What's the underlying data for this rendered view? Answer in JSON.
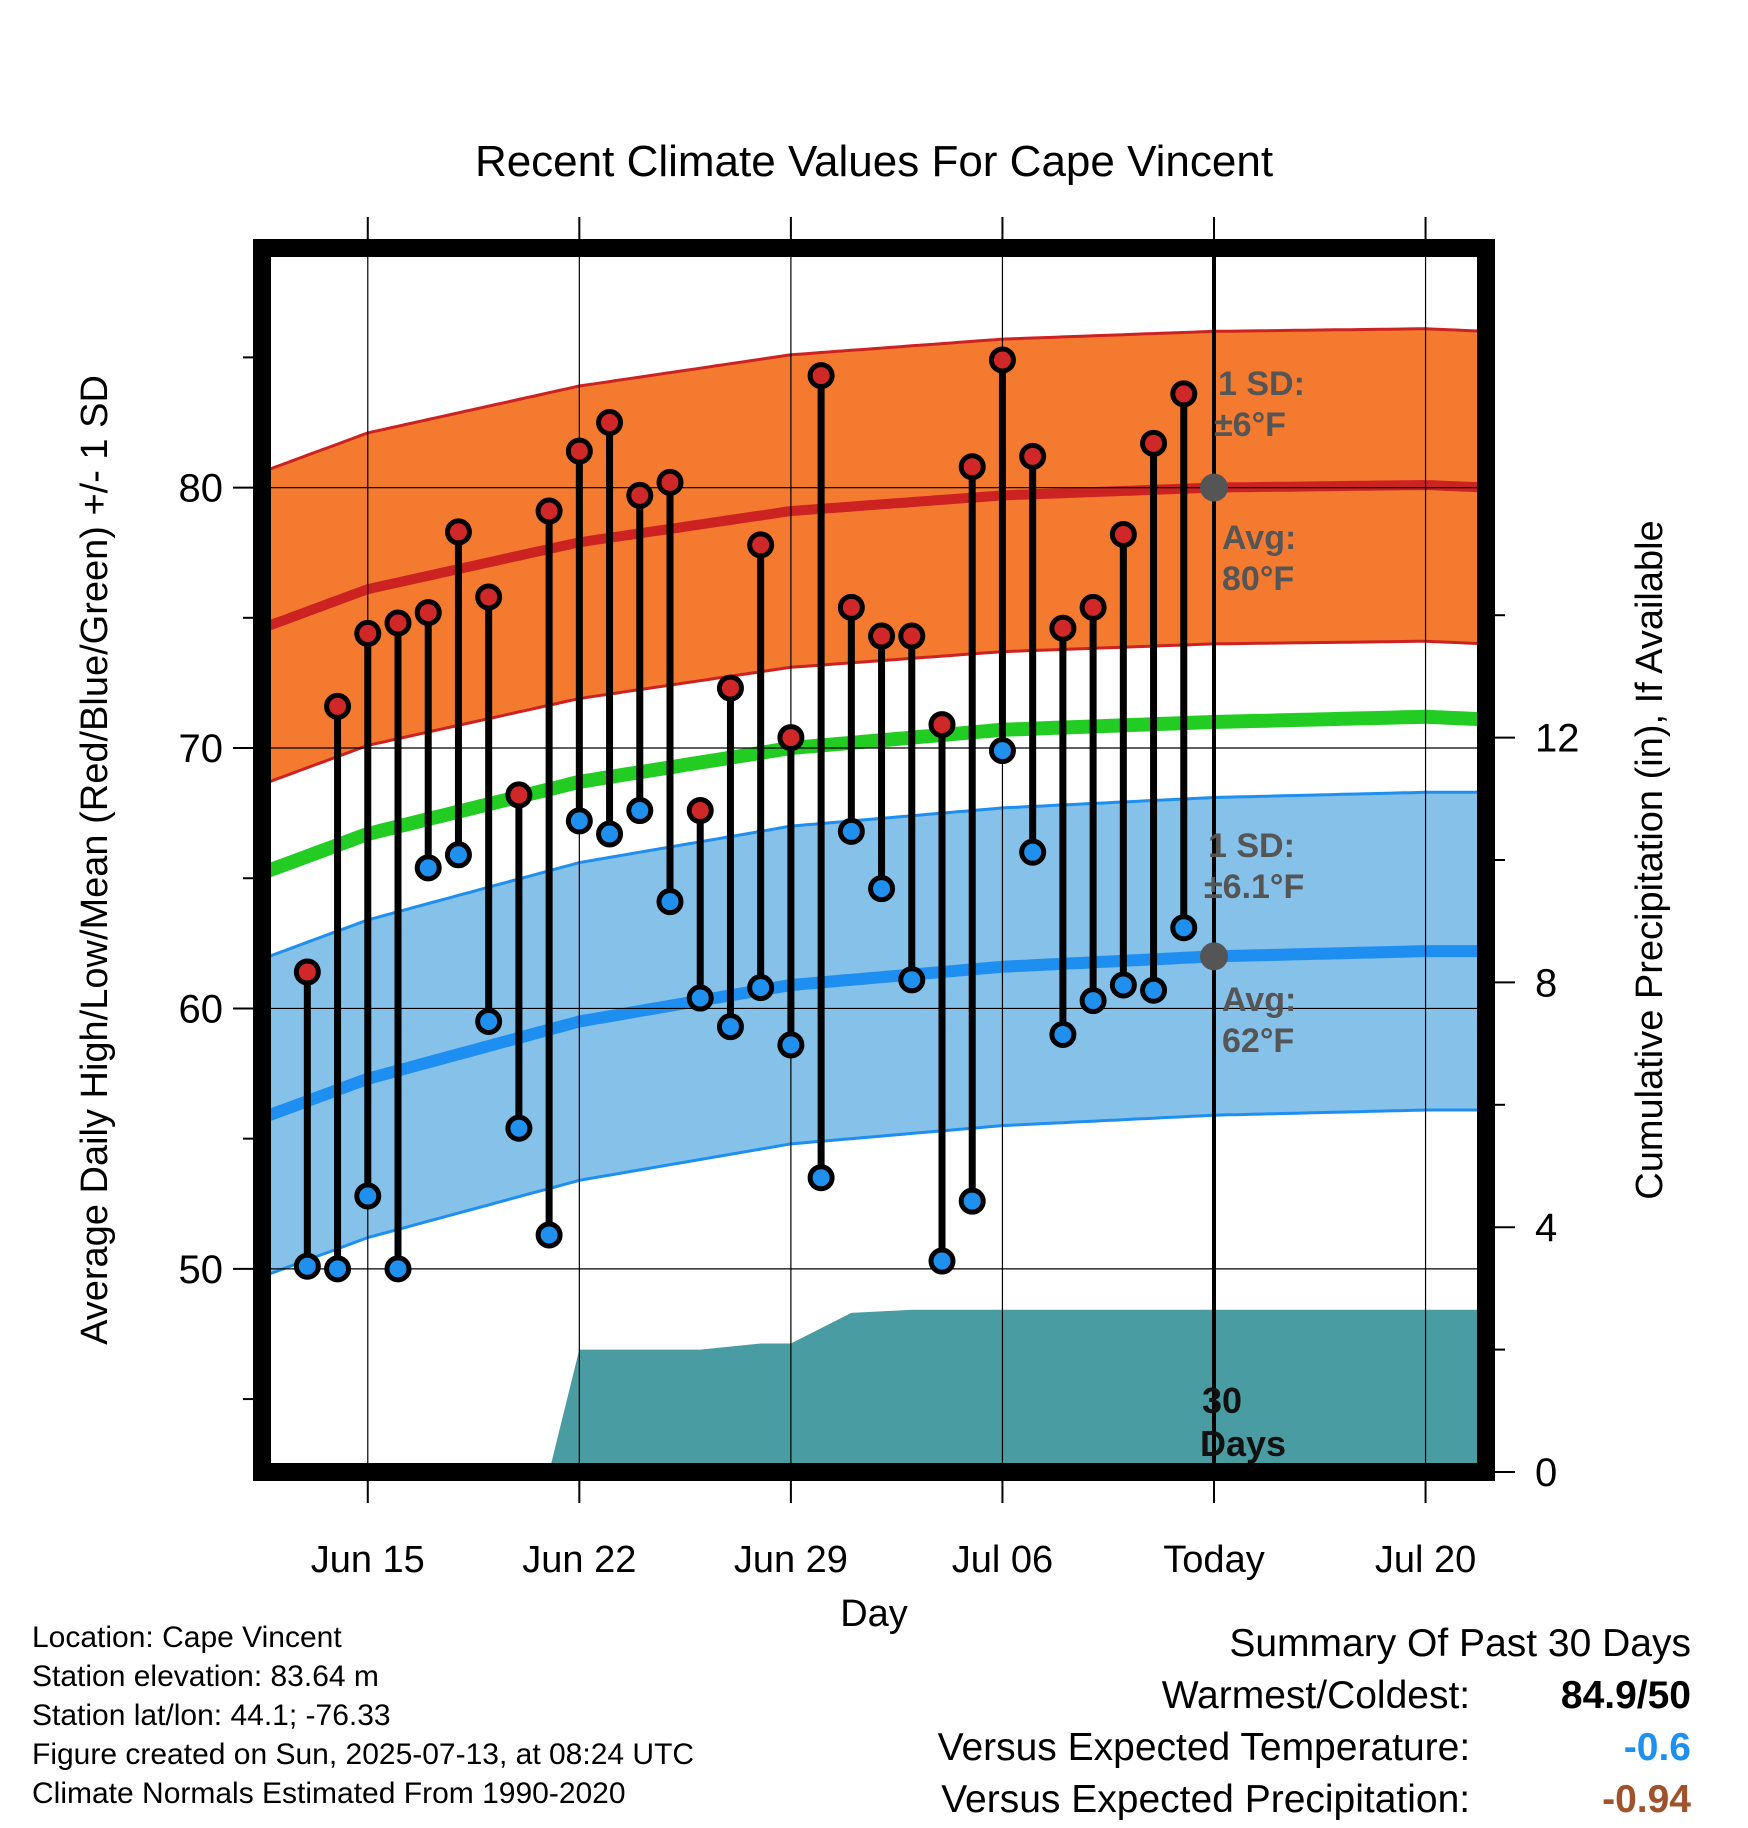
{
  "chart_data": {
    "type": "line",
    "title": "Recent Climate Values For Cape Vincent",
    "xlabel": "Day",
    "ylabel": "Average Daily High/Low/Mean (Red/Blue/Green) +/- 1 SD",
    "y2label": "Cumulative Precipitation (in), If Available",
    "ylim": [
      42.2,
      89.2
    ],
    "y2lim": [
      0,
      20
    ],
    "yticks": [
      50,
      60,
      70,
      80
    ],
    "y2ticks": [
      0,
      4,
      8,
      12
    ],
    "xticks": [
      {
        "day": 15,
        "label": "Jun 15"
      },
      {
        "day": 22,
        "label": "Jun 22"
      },
      {
        "day": 29,
        "label": "Jun 29"
      },
      {
        "day": 36,
        "label": "Jul 06"
      },
      {
        "day": 43,
        "label": "Today"
      },
      {
        "day": 50,
        "label": "Jul 20"
      }
    ],
    "xlim": [
      11.5,
      52
    ],
    "today_day": 43,
    "grid": true,
    "daily_observations": [
      {
        "day": 13,
        "high": 61.4,
        "low": 50.1
      },
      {
        "day": 14,
        "high": 71.6,
        "low": 50.0
      },
      {
        "day": 15,
        "high": 74.4,
        "low": 52.8
      },
      {
        "day": 16,
        "high": 74.8,
        "low": 50.0
      },
      {
        "day": 17,
        "high": 75.2,
        "low": 65.4
      },
      {
        "day": 18,
        "high": 78.3,
        "low": 65.9
      },
      {
        "day": 19,
        "high": 75.8,
        "low": 59.5
      },
      {
        "day": 20,
        "high": 68.2,
        "low": 55.4
      },
      {
        "day": 21,
        "high": 79.1,
        "low": 51.3
      },
      {
        "day": 22,
        "high": 81.4,
        "low": 67.2
      },
      {
        "day": 23,
        "high": 82.5,
        "low": 66.7
      },
      {
        "day": 24,
        "high": 79.7,
        "low": 67.6
      },
      {
        "day": 25,
        "high": 80.2,
        "low": 64.1
      },
      {
        "day": 26,
        "high": 67.6,
        "low": 60.4
      },
      {
        "day": 27,
        "high": 72.3,
        "low": 59.3
      },
      {
        "day": 28,
        "high": 77.8,
        "low": 60.8
      },
      {
        "day": 29,
        "high": 70.4,
        "low": 58.6
      },
      {
        "day": 30,
        "high": 84.3,
        "low": 53.5
      },
      {
        "day": 31,
        "high": 75.4,
        "low": 66.8
      },
      {
        "day": 32,
        "high": 74.3,
        "low": 64.6
      },
      {
        "day": 33,
        "high": 74.3,
        "low": 61.1
      },
      {
        "day": 34,
        "high": 70.9,
        "low": 50.3
      },
      {
        "day": 35,
        "high": 80.8,
        "low": 52.6
      },
      {
        "day": 36,
        "high": 84.9,
        "low": 69.9
      },
      {
        "day": 37,
        "high": 81.2,
        "low": 66.0
      },
      {
        "day": 38,
        "high": 74.6,
        "low": 59.0
      },
      {
        "day": 39,
        "high": 75.4,
        "low": 60.3
      },
      {
        "day": 40,
        "high": 78.2,
        "low": 60.9
      },
      {
        "day": 41,
        "high": 81.7,
        "low": 60.7
      },
      {
        "day": 42,
        "high": 83.6,
        "low": 63.1
      }
    ],
    "normals": {
      "days": [
        11.5,
        15,
        22,
        29,
        36,
        43,
        50,
        52
      ],
      "avg_high": [
        74.6,
        76.1,
        77.9,
        79.1,
        79.7,
        80.0,
        80.1,
        80.0
      ],
      "avg_low": [
        55.8,
        57.3,
        59.5,
        60.9,
        61.6,
        62.0,
        62.2,
        62.2
      ],
      "avg_mean": [
        65.2,
        66.7,
        68.7,
        70.0,
        70.7,
        71.0,
        71.2,
        71.1
      ],
      "high_sd": 6.0,
      "low_sd": 6.1
    },
    "precipitation": {
      "days": [
        11.5,
        21,
        22,
        26,
        28,
        29,
        31,
        33,
        36,
        43,
        52
      ],
      "cumulative": [
        0.0,
        0.0,
        2.0,
        2.0,
        2.1,
        2.1,
        2.6,
        2.65,
        2.65,
        2.65,
        2.65
      ]
    },
    "annotations": {
      "high_sd_line1": "1 SD:",
      "high_sd_line2": "±6°F",
      "high_avg_line1": "Avg:",
      "high_avg_line2": "80°F",
      "low_sd_line1": "1 SD:",
      "low_sd_line2": "±6.1°F",
      "low_avg_line1": "Avg:",
      "low_avg_line2": "62°F",
      "days_line1": "30",
      "days_line2": "Days"
    },
    "colors": {
      "high_band": "#f47a30",
      "high_line": "#cc2222",
      "low_band": "#85c1e8",
      "low_line": "#1e8ff0",
      "mean_line": "#22cc22",
      "precip": "#4a9ca3",
      "high_marker": "#d02828",
      "low_marker": "#2090ee",
      "today_marker": "#555555"
    }
  },
  "station_info": [
    "Location: Cape Vincent",
    "Station elevation: 83.64 m",
    "Station lat/lon: 44.1; -76.33",
    "Figure created on Sun, 2025-07-13, at 08:24 UTC",
    "Climate Normals Estimated From 1990-2020"
  ],
  "summary": {
    "title": "Summary Of Past 30 Days",
    "warmest_label": "Warmest/Coldest:",
    "warmest_value": "84.9/50",
    "temp_label": "Versus Expected Temperature:",
    "temp_value": "-0.6",
    "temp_color": "#2090ee",
    "precip_label": "Versus Expected Precipitation:",
    "precip_value": "-0.94",
    "precip_color": "#a0522d"
  }
}
